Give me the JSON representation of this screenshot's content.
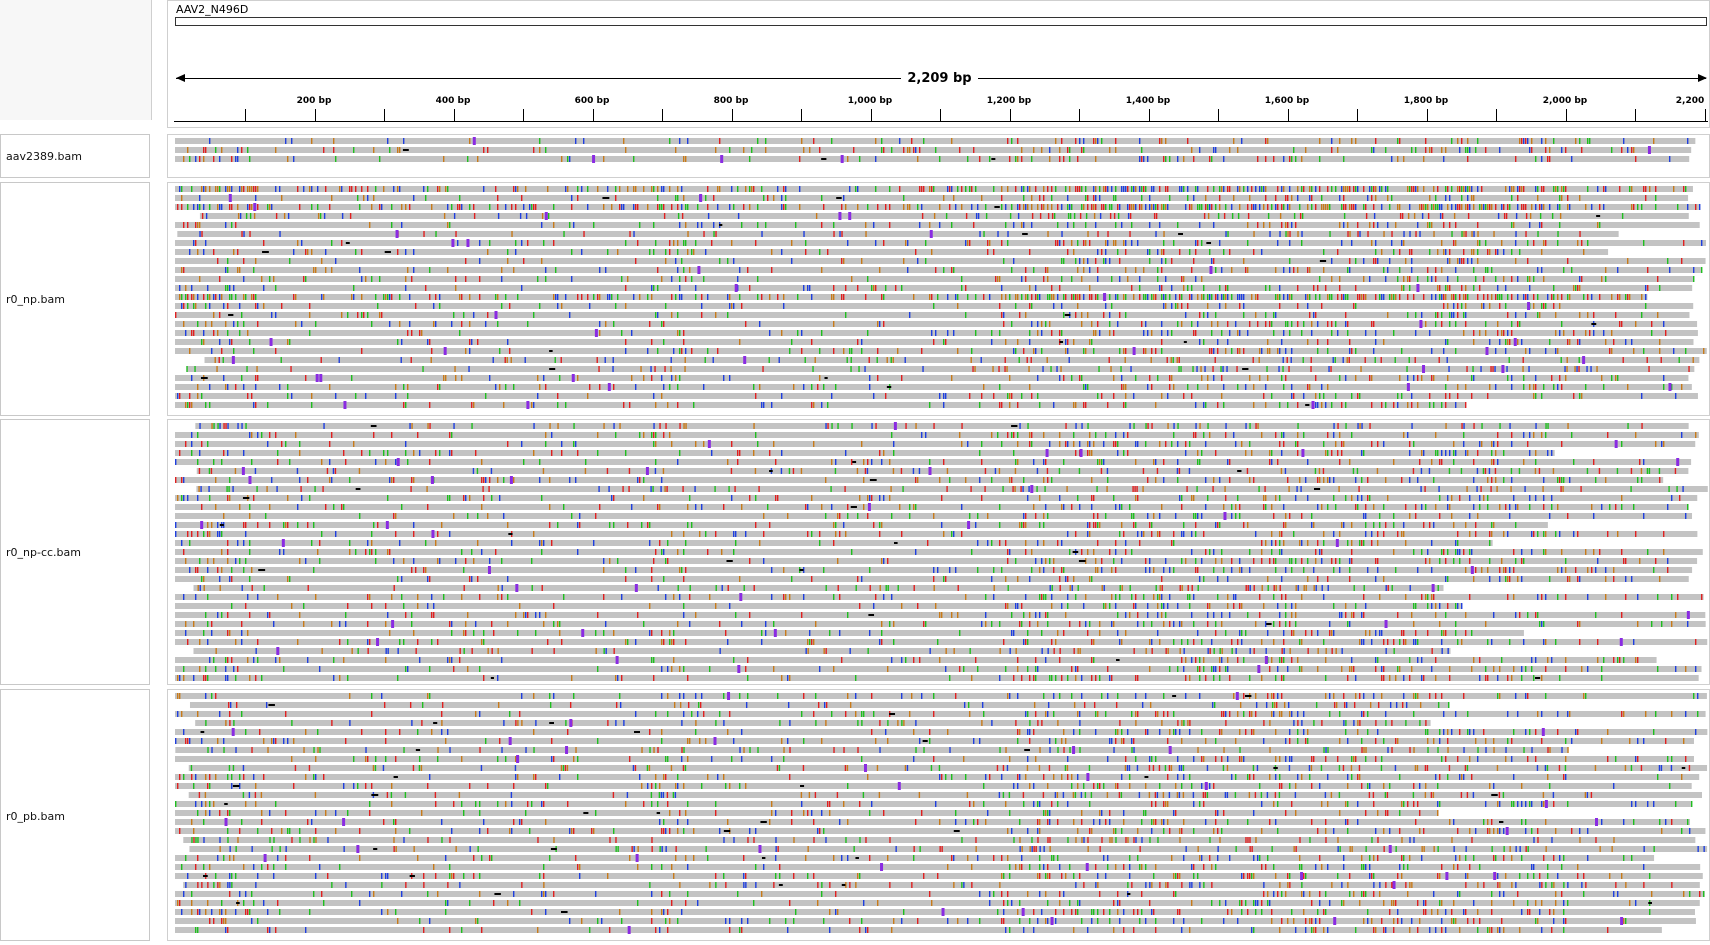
{
  "header": {
    "chromosome": "AAV2_N496D",
    "span_label": "2,209 bp",
    "ticks": [
      "200 bp",
      "400 bp",
      "600 bp",
      "800 bp",
      "1,000 bp",
      "1,200 bp",
      "1,400 bp",
      "1,600 bp",
      "1,800 bp",
      "2,000 bp",
      "2,200"
    ]
  },
  "tracks": [
    {
      "id": "aav2389",
      "name": "aav2389.bam",
      "reads": 3
    },
    {
      "id": "r0_np",
      "name": "r0_np.bam",
      "reads": 25
    },
    {
      "id": "r0_np_cc",
      "name": "r0_np-cc.bam",
      "reads": 29
    },
    {
      "id": "r0_pb",
      "name": "r0_pb.bam",
      "reads": 28
    }
  ],
  "colors": {
    "read": "#c3c3c3",
    "base_A": "#1fbf1f",
    "base_C": "#1f3fdf",
    "base_G": "#c87a1a",
    "base_T": "#e02020",
    "insertion": "#8a2be2",
    "deletion": "#000000"
  }
}
